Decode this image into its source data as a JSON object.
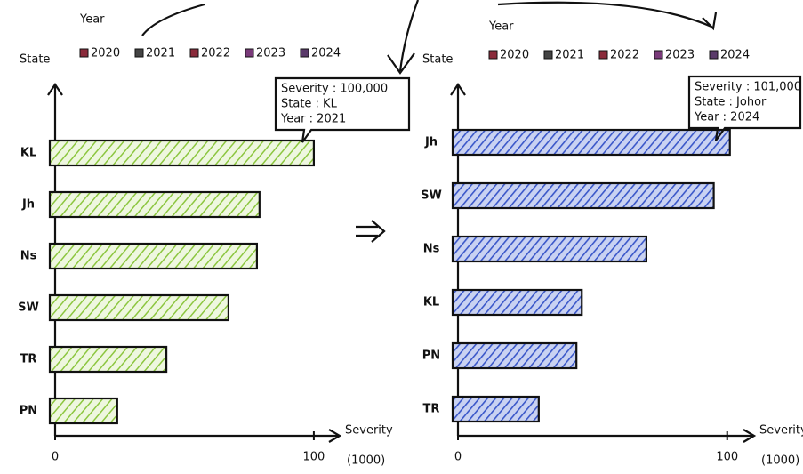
{
  "chart_data": [
    {
      "type": "bar",
      "orientation": "horizontal",
      "legend_title": "Year",
      "legend_items": [
        "2020",
        "2021",
        "2022",
        "2023",
        "2024"
      ],
      "y_label": "State",
      "x_label": "Severity",
      "x_label_unit": "(1000)",
      "categories": [
        "KL",
        "Jh",
        "Ns",
        "SW",
        "TR",
        "PN"
      ],
      "values": [
        100,
        79,
        78,
        67,
        43,
        24
      ],
      "color": "#8cc63f",
      "xlim": [
        0,
        110
      ],
      "xticks": [
        0,
        100
      ],
      "tooltip": [
        "Severity : 100,000",
        "State : KL",
        "Year : 2021"
      ]
    },
    {
      "type": "bar",
      "orientation": "horizontal",
      "legend_title": "Year",
      "legend_items": [
        "2020",
        "2021",
        "2022",
        "2023",
        "2024"
      ],
      "y_label": "State",
      "x_label": "Severity",
      "x_label_unit": "(1000)",
      "categories": [
        "Jh",
        "SW",
        "Ns",
        "KL",
        "PN",
        "TR"
      ],
      "values": [
        101,
        95,
        70,
        46,
        44,
        30
      ],
      "color": "#3a57c9",
      "xlim": [
        0,
        110
      ],
      "xticks": [
        0,
        100
      ],
      "tooltip": [
        "Severity : 101,000",
        "State : Johor",
        "Year : 2024"
      ]
    }
  ]
}
